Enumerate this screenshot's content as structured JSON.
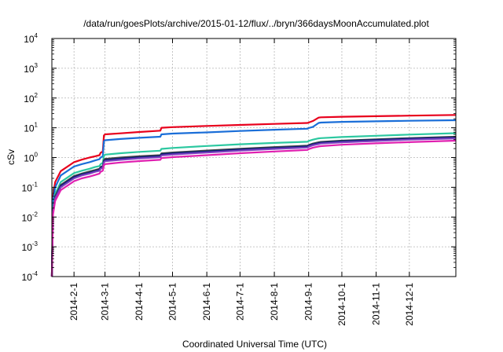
{
  "chart_data": {
    "type": "line",
    "title": "/data/run/goesPlots/archive/2015-01-12/flux/../bryn/366daysMoonAccumulated.plot",
    "xlabel": "Coordinated Universal Time (UTC)",
    "ylabel": "cSv",
    "y_scale": "log",
    "ylim": [
      0.0001,
      10000
    ],
    "xlim": [
      "2014-01-12",
      "2015-01-12"
    ],
    "grid": true,
    "legend": "none",
    "x_ticks": [
      "2014-2-1",
      "2014-3-1",
      "2014-4-1",
      "2014-5-1",
      "2014-6-1",
      "2014-7-1",
      "2014-8-1",
      "2014-9-1",
      "2014-10-1",
      "2014-11-1",
      "2014-12-1"
    ],
    "y_ticks": [
      {
        "base": "10",
        "exp": "-4",
        "value": 0.0001
      },
      {
        "base": "10",
        "exp": "-3",
        "value": 0.001
      },
      {
        "base": "10",
        "exp": "-2",
        "value": 0.01
      },
      {
        "base": "10",
        "exp": "-1",
        "value": 0.1
      },
      {
        "base": "10",
        "exp": "0",
        "value": 1
      },
      {
        "base": "10",
        "exp": "1",
        "value": 10
      },
      {
        "base": "10",
        "exp": "2",
        "value": 100
      },
      {
        "base": "10",
        "exp": "3",
        "value": 1000
      },
      {
        "base": "10",
        "exp": "4",
        "value": 10000
      }
    ],
    "x": [
      "2014-01-12",
      "2014-01-13",
      "2014-01-15",
      "2014-01-20",
      "2014-02-01",
      "2014-02-08",
      "2014-02-15",
      "2014-02-20",
      "2014-02-24",
      "2014-02-25",
      "2014-02-27",
      "2014-02-28",
      "2014-03-01",
      "2014-03-15",
      "2014-04-01",
      "2014-04-20",
      "2014-04-21",
      "2014-05-01",
      "2014-06-01",
      "2014-07-01",
      "2014-08-01",
      "2014-08-31",
      "2014-09-01",
      "2014-09-05",
      "2014-09-10",
      "2014-09-12",
      "2014-10-01",
      "2014-11-01",
      "2014-12-01",
      "2015-01-12"
    ],
    "series": [
      {
        "color": "#e8001c",
        "values": [
          0.0001,
          0.05,
          0.15,
          0.35,
          0.7,
          0.85,
          1.0,
          1.1,
          1.2,
          1.45,
          1.6,
          5.5,
          6.0,
          6.5,
          7.2,
          8.0,
          10.0,
          10.5,
          11.5,
          12.5,
          13.5,
          14.5,
          15.0,
          17.0,
          22.0,
          22.5,
          23.5,
          24.5,
          25.5,
          27.0
        ]
      },
      {
        "color": "#1a6ed8",
        "values": [
          0.0001,
          0.035,
          0.1,
          0.25,
          0.5,
          0.6,
          0.7,
          0.8,
          0.88,
          1.0,
          1.1,
          3.5,
          3.8,
          4.2,
          4.6,
          5.0,
          6.0,
          6.4,
          7.0,
          7.8,
          8.6,
          9.3,
          9.8,
          10.8,
          14.5,
          15.0,
          15.8,
          16.5,
          17.2,
          18.0
        ]
      },
      {
        "color": "#2cc8a0",
        "values": [
          0.0001,
          0.02,
          0.06,
          0.15,
          0.3,
          0.36,
          0.42,
          0.48,
          0.52,
          0.6,
          0.66,
          1.15,
          1.25,
          1.4,
          1.55,
          1.7,
          1.95,
          2.1,
          2.45,
          2.8,
          3.1,
          3.4,
          3.6,
          4.0,
          4.4,
          4.5,
          4.9,
          5.4,
          5.9,
          6.6
        ]
      },
      {
        "color": "#444444",
        "values": [
          0.0001,
          0.016,
          0.05,
          0.12,
          0.24,
          0.29,
          0.34,
          0.38,
          0.42,
          0.48,
          0.52,
          0.82,
          0.9,
          1.0,
          1.1,
          1.2,
          1.38,
          1.48,
          1.72,
          1.98,
          2.25,
          2.5,
          2.65,
          2.95,
          3.25,
          3.35,
          3.7,
          4.1,
          4.5,
          5.0
        ]
      },
      {
        "color": "#0c1f7a",
        "values": [
          0.0001,
          0.015,
          0.045,
          0.11,
          0.22,
          0.27,
          0.31,
          0.35,
          0.39,
          0.45,
          0.49,
          0.74,
          0.82,
          0.92,
          1.02,
          1.12,
          1.28,
          1.38,
          1.6,
          1.85,
          2.1,
          2.35,
          2.5,
          2.8,
          3.05,
          3.15,
          3.5,
          3.9,
          4.3,
          4.7
        ]
      },
      {
        "color": "#7a3fbf",
        "values": [
          0.0001,
          0.014,
          0.042,
          0.1,
          0.2,
          0.25,
          0.29,
          0.33,
          0.36,
          0.42,
          0.45,
          0.68,
          0.75,
          0.84,
          0.94,
          1.03,
          1.18,
          1.27,
          1.48,
          1.72,
          1.95,
          2.18,
          2.32,
          2.6,
          2.85,
          2.95,
          3.25,
          3.6,
          4.0,
          4.4
        ]
      },
      {
        "color": "#e020b0",
        "values": [
          0.0001,
          0.012,
          0.035,
          0.08,
          0.16,
          0.2,
          0.23,
          0.26,
          0.29,
          0.33,
          0.36,
          0.55,
          0.6,
          0.68,
          0.76,
          0.84,
          0.96,
          1.03,
          1.2,
          1.4,
          1.6,
          1.8,
          1.92,
          2.15,
          2.35,
          2.42,
          2.7,
          3.0,
          3.3,
          3.7
        ]
      }
    ]
  }
}
